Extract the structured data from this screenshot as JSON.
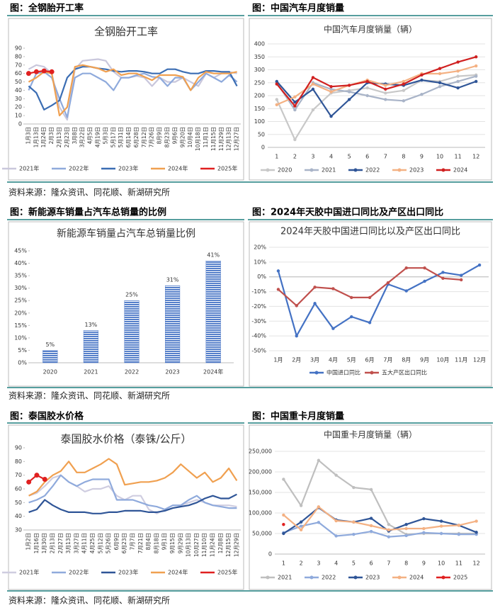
{
  "captions": [
    "图：全钢胎开工率",
    "图：中国汽车月度销量",
    "图：新能源车销量占汽车总销量的比例",
    "图：2024年天胶中国进口同比及产区出口同比",
    "图：泰国胶水价格",
    "图：中国重卡月度销量"
  ],
  "sources": [
    "资料来源：隆众资讯、同花顺、新湖研究所",
    "资料来源：隆众资讯、同花顺、新湖研究所",
    "资料来源：隆众资讯、同花顺、新湖研究所"
  ],
  "chart_data": [
    {
      "type": "line",
      "title": "全钢胎开工率",
      "grid": false,
      "markers": false,
      "legend": "bottom",
      "categories": [
        "1月3日",
        "1月13日",
        "1月24日",
        "2月3日",
        "2月13日",
        "2月23日",
        "3月8日",
        "3月22日",
        "4月5日",
        "4月19日",
        "5月3日",
        "5月17日",
        "5月31日",
        "6月14日",
        "6月28日",
        "7月12日",
        "7月26日",
        "8月9日",
        "8月23日",
        "9月6日",
        "9月20日",
        "10月4日",
        "10月18日",
        "11月1日",
        "11月15日",
        "11月29日",
        "12月13日",
        "12月27日"
      ],
      "ylim": [
        0,
        90
      ],
      "yticks": [
        0,
        10,
        20,
        30,
        40,
        50,
        60,
        70,
        80,
        90
      ],
      "series": [
        {
          "name": "2021年",
          "color": "#c9c7dc",
          "values": [
            65,
            70,
            68,
            60,
            20,
            5,
            65,
            75,
            76,
            77,
            75,
            62,
            55,
            55,
            57,
            55,
            45,
            55,
            50,
            50,
            55,
            50,
            45,
            60,
            55,
            60,
            62,
            60
          ]
        },
        {
          "name": "2022年",
          "color": "#8faadc",
          "values": [
            40,
            60,
            62,
            55,
            30,
            8,
            55,
            60,
            60,
            55,
            50,
            40,
            55,
            55,
            58,
            60,
            56,
            55,
            45,
            55,
            55,
            40,
            50,
            60,
            55,
            50,
            58,
            50
          ]
        },
        {
          "name": "2023年",
          "color": "#3b6db3",
          "values": [
            45,
            37,
            17,
            22,
            28,
            55,
            65,
            68,
            68,
            66,
            65,
            63,
            62,
            63,
            63,
            62,
            60,
            60,
            65,
            65,
            62,
            60,
            60,
            63,
            63,
            62,
            62,
            45
          ]
        },
        {
          "name": "2024年",
          "color": "#f0a050",
          "values": [
            50,
            55,
            62,
            60,
            10,
            20,
            68,
            70,
            68,
            66,
            62,
            65,
            58,
            60,
            60,
            56,
            52,
            58,
            58,
            58,
            56,
            40,
            55,
            62,
            60,
            60,
            60,
            62
          ]
        },
        {
          "name": "2025年",
          "color": "#e02020",
          "values": [
            60,
            62,
            63,
            62,
            null,
            null,
            null,
            null,
            null,
            null,
            null,
            null,
            null,
            null,
            null,
            null,
            null,
            null,
            null,
            null,
            null,
            null,
            null,
            null,
            null,
            null,
            null,
            null
          ]
        }
      ]
    },
    {
      "type": "line",
      "title": "中国汽车月度销量（辆）",
      "grid": true,
      "markers": true,
      "legend": "bottom",
      "categories": [
        "1",
        "2",
        "3",
        "4",
        "5",
        "6",
        "7",
        "8",
        "9",
        "10",
        "11",
        "12"
      ],
      "ylim": [
        0,
        400
      ],
      "yticks": [
        0,
        50,
        100,
        150,
        200,
        250,
        300,
        350,
        400
      ],
      "series": [
        {
          "name": "2020",
          "color": "#c8c8c8",
          "values": [
            185,
            30,
            145,
            210,
            220,
            230,
            210,
            220,
            260,
            255,
            275,
            280
          ]
        },
        {
          "name": "2021",
          "color": "#a9b4c8",
          "values": [
            250,
            145,
            250,
            225,
            215,
            200,
            185,
            180,
            205,
            235,
            255,
            275
          ]
        },
        {
          "name": "2022",
          "color": "#2f5597",
          "values": [
            255,
            175,
            225,
            120,
            185,
            250,
            245,
            240,
            260,
            250,
            230,
            255
          ]
        },
        {
          "name": "2023",
          "color": "#f4b183",
          "values": [
            165,
            195,
            245,
            215,
            240,
            260,
            240,
            255,
            285,
            285,
            295,
            315
          ]
        },
        {
          "name": "2024",
          "color": "#d02020",
          "values": [
            245,
            160,
            270,
            235,
            240,
            255,
            225,
            245,
            280,
            305,
            330,
            350
          ]
        }
      ]
    },
    {
      "type": "bar",
      "title": "新能源车销量占汽车总销量比例",
      "grid": false,
      "color": "#4472c4",
      "categories": [
        "2020",
        "2021",
        "2022",
        "2023",
        "2024年"
      ],
      "values": [
        5,
        13,
        25,
        31,
        41
      ],
      "value_labels": [
        "5%",
        "13%",
        "25%",
        "31%",
        "41%"
      ],
      "ylim": [
        0,
        45
      ],
      "yticks": [
        {
          "value": 0,
          "label": "0%"
        },
        {
          "value": 5,
          "label": "5%"
        },
        {
          "value": 10,
          "label": "10%"
        },
        {
          "value": 15,
          "label": "15%"
        },
        {
          "value": 20,
          "label": "20%"
        },
        {
          "value": 25,
          "label": "25%"
        },
        {
          "value": 30,
          "label": "30%"
        },
        {
          "value": 35,
          "label": "35%"
        },
        {
          "value": 40,
          "label": "40%"
        },
        {
          "value": 45,
          "label": "45%"
        }
      ]
    },
    {
      "type": "line",
      "title": "2024年天胶中国进口同比以及产区出口同比",
      "grid": true,
      "markers": true,
      "legend": "bottom",
      "categories": [
        "1月",
        "2月",
        "3月",
        "4月",
        "5月",
        "6月",
        "7月",
        "8月",
        "9月",
        "10月",
        "11月",
        "12月"
      ],
      "ylim": [
        -50,
        20
      ],
      "yticks": [
        {
          "value": -50,
          "label": "-50%"
        },
        {
          "value": -40,
          "label": "-40%"
        },
        {
          "value": -30,
          "label": "-30%"
        },
        {
          "value": -20,
          "label": "-20%"
        },
        {
          "value": -10,
          "label": "-10%"
        },
        {
          "value": 0,
          "label": "0%"
        },
        {
          "value": 10,
          "label": "10%"
        },
        {
          "value": 20,
          "label": "20%"
        }
      ],
      "series": [
        {
          "name": "中国进口同比",
          "color": "#4472c4",
          "values": [
            4,
            -40,
            -18,
            -35,
            -27,
            -31,
            -5,
            -9.5,
            -3,
            3,
            1,
            8
          ]
        },
        {
          "name": "五大产区出口同比",
          "color": "#c0504d",
          "values": [
            -8.5,
            -19.5,
            -7,
            -8,
            -14,
            -14,
            -4,
            6,
            6,
            -1,
            -2,
            null
          ]
        }
      ]
    },
    {
      "type": "line",
      "title": "泰国胶水价格（泰铢/公斤）",
      "grid": false,
      "markers": false,
      "legend": "bottom",
      "categories": [
        "1月2日",
        "1月16日",
        "1月30日",
        "2月13日",
        "2月27日",
        "3月13日",
        "3月27日",
        "4月11日",
        "4月25日",
        "5月12日",
        "5月26日",
        "6月9日",
        "6月23日",
        "7月7日",
        "7月21日",
        "8月4日",
        "8月18日",
        "9月1日",
        "9月15日",
        "9月29日",
        "10月13日",
        "10月27日",
        "11月10日",
        "11月24日",
        "12月8日",
        "12月15日",
        "12月29日"
      ],
      "ylim": [
        30,
        90
      ],
      "yticks": [
        30,
        40,
        50,
        60,
        70,
        80,
        90
      ],
      "series": [
        {
          "name": "2021年",
          "color": "#cfcde0",
          "values": [
            55,
            57,
            62,
            68,
            70,
            65,
            62,
            58,
            60,
            60,
            62,
            55,
            52,
            55,
            55,
            45,
            42,
            45,
            48,
            48,
            50,
            52,
            50,
            48,
            48,
            48,
            47
          ]
        },
        {
          "name": "2022年",
          "color": "#8faadc",
          "values": [
            50,
            52,
            55,
            62,
            70,
            65,
            62,
            65,
            67,
            67,
            67,
            52,
            52,
            52,
            50,
            48,
            47,
            45,
            48,
            48,
            52,
            55,
            50,
            48,
            47,
            46,
            46
          ]
        },
        {
          "name": "2023年",
          "color": "#2f5597",
          "values": [
            43,
            45,
            52,
            48,
            45,
            43,
            43,
            43,
            42,
            42,
            43,
            43,
            44,
            44,
            44,
            43,
            43,
            44,
            46,
            47,
            48,
            50,
            53,
            55,
            53,
            53,
            56
          ]
        },
        {
          "name": "2024年",
          "color": "#f0a050",
          "values": [
            55,
            58,
            65,
            70,
            73,
            80,
            72,
            72,
            75,
            78,
            82,
            78,
            63,
            64,
            65,
            65,
            66,
            68,
            72,
            78,
            73,
            68,
            72,
            65,
            68,
            75,
            66
          ]
        },
        {
          "name": "2025年",
          "color": "#e02020",
          "values": [
            65,
            70,
            67,
            null,
            null,
            null,
            null,
            null,
            null,
            null,
            null,
            null,
            null,
            null,
            null,
            null,
            null,
            null,
            null,
            null,
            null,
            null,
            null,
            null,
            null,
            null,
            null
          ]
        }
      ]
    },
    {
      "type": "line",
      "title": "中国重卡月度销量（辆）",
      "grid": true,
      "markers": true,
      "legend": "bottom",
      "categories": [
        "1",
        "2",
        "3",
        "4",
        "5",
        "6",
        "7",
        "8",
        "9",
        "10",
        "11",
        "12"
      ],
      "ylim": [
        0,
        250000
      ],
      "yticks": [
        0,
        {
          "value": 50000,
          "label": "50,000"
        },
        {
          "value": 100000,
          "label": "100,000"
        },
        {
          "value": 150000,
          "label": "150,000"
        },
        {
          "value": 200000,
          "label": "200,000"
        },
        {
          "value": 250000,
          "label": "250,000"
        }
      ],
      "series": [
        {
          "name": "2021",
          "color": "#bfbfbf",
          "values": [
            182000,
            118000,
            228000,
            192000,
            162000,
            157000,
            72000,
            48000,
            50000,
            50000,
            50000,
            50000
          ]
        },
        {
          "name": "2022",
          "color": "#8faadc",
          "values": [
            52000,
            68000,
            77000,
            44000,
            48000,
            55000,
            42000,
            45000,
            52000,
            50000,
            48000,
            48000
          ]
        },
        {
          "name": "2023",
          "color": "#2f5597",
          "values": [
            50000,
            78000,
            113000,
            83000,
            78000,
            87000,
            56000,
            72000,
            86000,
            80000,
            70000,
            53000
          ]
        },
        {
          "name": "2024",
          "color": "#f4b183",
          "values": [
            95000,
            59000,
            115000,
            81000,
            78000,
            69000,
            59000,
            62000,
            62000,
            68000,
            70000,
            80000
          ]
        },
        {
          "name": "2025",
          "color": "#e02020",
          "values": [
            72000,
            null,
            null,
            null,
            null,
            null,
            null,
            null,
            null,
            null,
            null,
            null
          ]
        }
      ]
    }
  ]
}
